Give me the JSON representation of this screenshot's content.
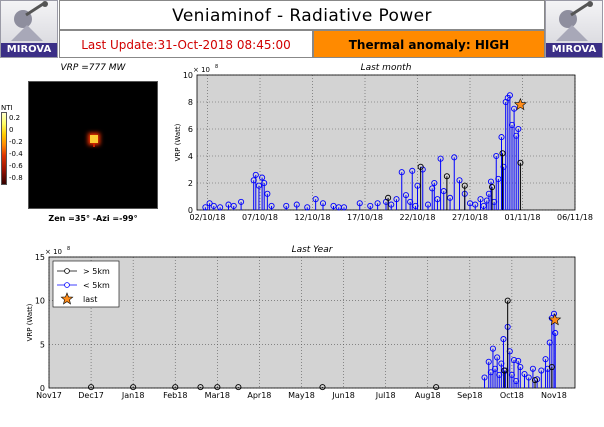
{
  "header": {
    "logo_text": "MIROVA",
    "title": "Veniaminof - Radiative Power",
    "last_update": "Last Update:31-Oct-2018 08:45:00",
    "anomaly": "Thermal anomaly: HIGH"
  },
  "thumbnail": {
    "title": "VRP =777 MW",
    "caption": "Zen =35° -Azi =-99°",
    "colorbar_label": "NTI",
    "colorbar_ticks": [
      "0.2",
      "0",
      "-0.2",
      "-0.4",
      "-0.6",
      "-0.8"
    ]
  },
  "colors": {
    "anomaly_bg": "#ff8a00",
    "update_text": "#d10000",
    "near_series": "#0000ff",
    "far_series": "#000000",
    "last_marker": "#ff8c1a",
    "plot_bg": "#d3d3d3",
    "logo_band": "#3b2f86"
  },
  "chart_data": [
    {
      "type": "scatter",
      "title": "Last month",
      "ylabel": "VRP (Watt)",
      "y_multiplier": "× 10",
      "y_multiplier_exp": "8",
      "xlim": [
        0,
        36
      ],
      "ylim": [
        0,
        10
      ],
      "yticks": [
        0,
        2,
        4,
        6,
        8,
        10
      ],
      "xticks": [
        {
          "x": 1,
          "label": "02/10/18"
        },
        {
          "x": 6,
          "label": "07/10/18"
        },
        {
          "x": 11,
          "label": "12/10/18"
        },
        {
          "x": 16,
          "label": "17/10/18"
        },
        {
          "x": 21,
          "label": "22/10/18"
        },
        {
          "x": 26,
          "label": "27/10/18"
        },
        {
          "x": 31,
          "label": "01/11/18"
        },
        {
          "x": 36,
          "label": "06/11/18"
        }
      ],
      "series": [
        {
          "name": "< 5km",
          "marker": "circle",
          "x": [
            0.8,
            1.2,
            1.6,
            2.2,
            3.0,
            3.5,
            4.2,
            5.4,
            5.6,
            5.9,
            6.2,
            6.4,
            6.7,
            7.1,
            8.5,
            9.5,
            10.5,
            11.3,
            12.0,
            13.0,
            13.5,
            14.0,
            15.5,
            16.5,
            17.2,
            18.0,
            18.5,
            19.0,
            19.5,
            19.9,
            20.3,
            20.5,
            20.8,
            21.0,
            21.5,
            22.0,
            22.4,
            22.6,
            22.9,
            23.2,
            23.5,
            24.1,
            24.5,
            25.0,
            25.5,
            26.0,
            26.5,
            27.0,
            27.3,
            27.6,
            27.8,
            28.0,
            28.3,
            28.5,
            28.7,
            29.0,
            29.2,
            29.4,
            29.6,
            29.8,
            30.0,
            30.2,
            30.4,
            30.6
          ],
          "y": [
            0.2,
            0.5,
            0.3,
            0.2,
            0.4,
            0.3,
            0.6,
            2.2,
            2.6,
            1.8,
            2.4,
            2.0,
            1.2,
            0.3,
            0.3,
            0.4,
            0.2,
            0.8,
            0.5,
            0.3,
            0.2,
            0.2,
            0.5,
            0.3,
            0.5,
            0.6,
            0.4,
            0.8,
            2.8,
            1.1,
            0.6,
            2.9,
            0.3,
            1.8,
            3.0,
            0.4,
            1.6,
            2.0,
            0.8,
            3.8,
            1.4,
            0.9,
            3.9,
            2.2,
            1.2,
            0.5,
            0.4,
            0.8,
            0.3,
            0.7,
            1.2,
            2.1,
            0.6,
            4.0,
            2.3,
            5.4,
            3.2,
            8.0,
            8.3,
            8.5,
            6.3,
            7.5,
            5.5,
            6.0
          ]
        },
        {
          "name": "> 5km",
          "marker": "circle",
          "x": [
            18.2,
            21.3,
            23.8,
            25.5,
            28.1,
            29.1,
            30.8
          ],
          "y": [
            0.9,
            3.2,
            2.5,
            1.8,
            1.7,
            4.2,
            3.5
          ]
        },
        {
          "name": "last",
          "marker": "star",
          "x": [
            30.8
          ],
          "y": [
            7.8
          ]
        }
      ]
    },
    {
      "type": "scatter",
      "title": "Last Year",
      "ylabel": "VRP (Watt)",
      "y_multiplier": "× 10",
      "y_multiplier_exp": "8",
      "xlim": [
        0,
        12.5
      ],
      "ylim": [
        0,
        15
      ],
      "yticks": [
        0,
        5,
        10,
        15
      ],
      "xticks": [
        {
          "x": 0,
          "label": "Nov17"
        },
        {
          "x": 1,
          "label": "Dec17"
        },
        {
          "x": 2,
          "label": "Jan18"
        },
        {
          "x": 3,
          "label": "Feb18"
        },
        {
          "x": 4,
          "label": "Mar18"
        },
        {
          "x": 5,
          "label": "Apr18"
        },
        {
          "x": 6,
          "label": "May18"
        },
        {
          "x": 7,
          "label": "Jun18"
        },
        {
          "x": 8,
          "label": "Jul18"
        },
        {
          "x": 9,
          "label": "Aug18"
        },
        {
          "x": 10,
          "label": "Sep18"
        },
        {
          "x": 11,
          "label": "Oct18"
        },
        {
          "x": 12,
          "label": "Nov18"
        }
      ],
      "legend": [
        "> 5km",
        "< 5km",
        "last"
      ],
      "legend_position": "top-left",
      "series": [
        {
          "name": "< 5km",
          "marker": "circle",
          "x": [
            10.35,
            10.45,
            10.5,
            10.55,
            10.6,
            10.65,
            10.7,
            10.75,
            10.8,
            10.85,
            10.9,
            10.95,
            11.0,
            11.05,
            11.1,
            11.15,
            11.2,
            11.3,
            11.4,
            11.5,
            11.6,
            11.7,
            11.8,
            11.85,
            11.9,
            11.95,
            12.0,
            12.03
          ],
          "y": [
            1.2,
            3.0,
            1.8,
            4.5,
            2.2,
            3.5,
            1.5,
            2.8,
            5.6,
            2.0,
            7.0,
            4.2,
            1.5,
            3.2,
            0.8,
            3.1,
            2.4,
            1.6,
            1.2,
            2.2,
            1.0,
            2.0,
            3.3,
            2.2,
            5.2,
            8.0,
            8.5,
            6.3
          ]
        },
        {
          "name": "> 5km",
          "marker": "circle",
          "x": [
            1.0,
            2.0,
            3.0,
            3.6,
            4.0,
            4.5,
            6.5,
            9.2,
            10.82,
            10.9,
            11.55,
            11.95
          ],
          "y": [
            0.1,
            0.1,
            0.1,
            0.1,
            0.1,
            0.1,
            0.1,
            0.1,
            2.0,
            10.0,
            0.9,
            2.4
          ]
        },
        {
          "name": "last",
          "marker": "star",
          "x": [
            12.02
          ],
          "y": [
            7.8
          ]
        }
      ]
    }
  ]
}
